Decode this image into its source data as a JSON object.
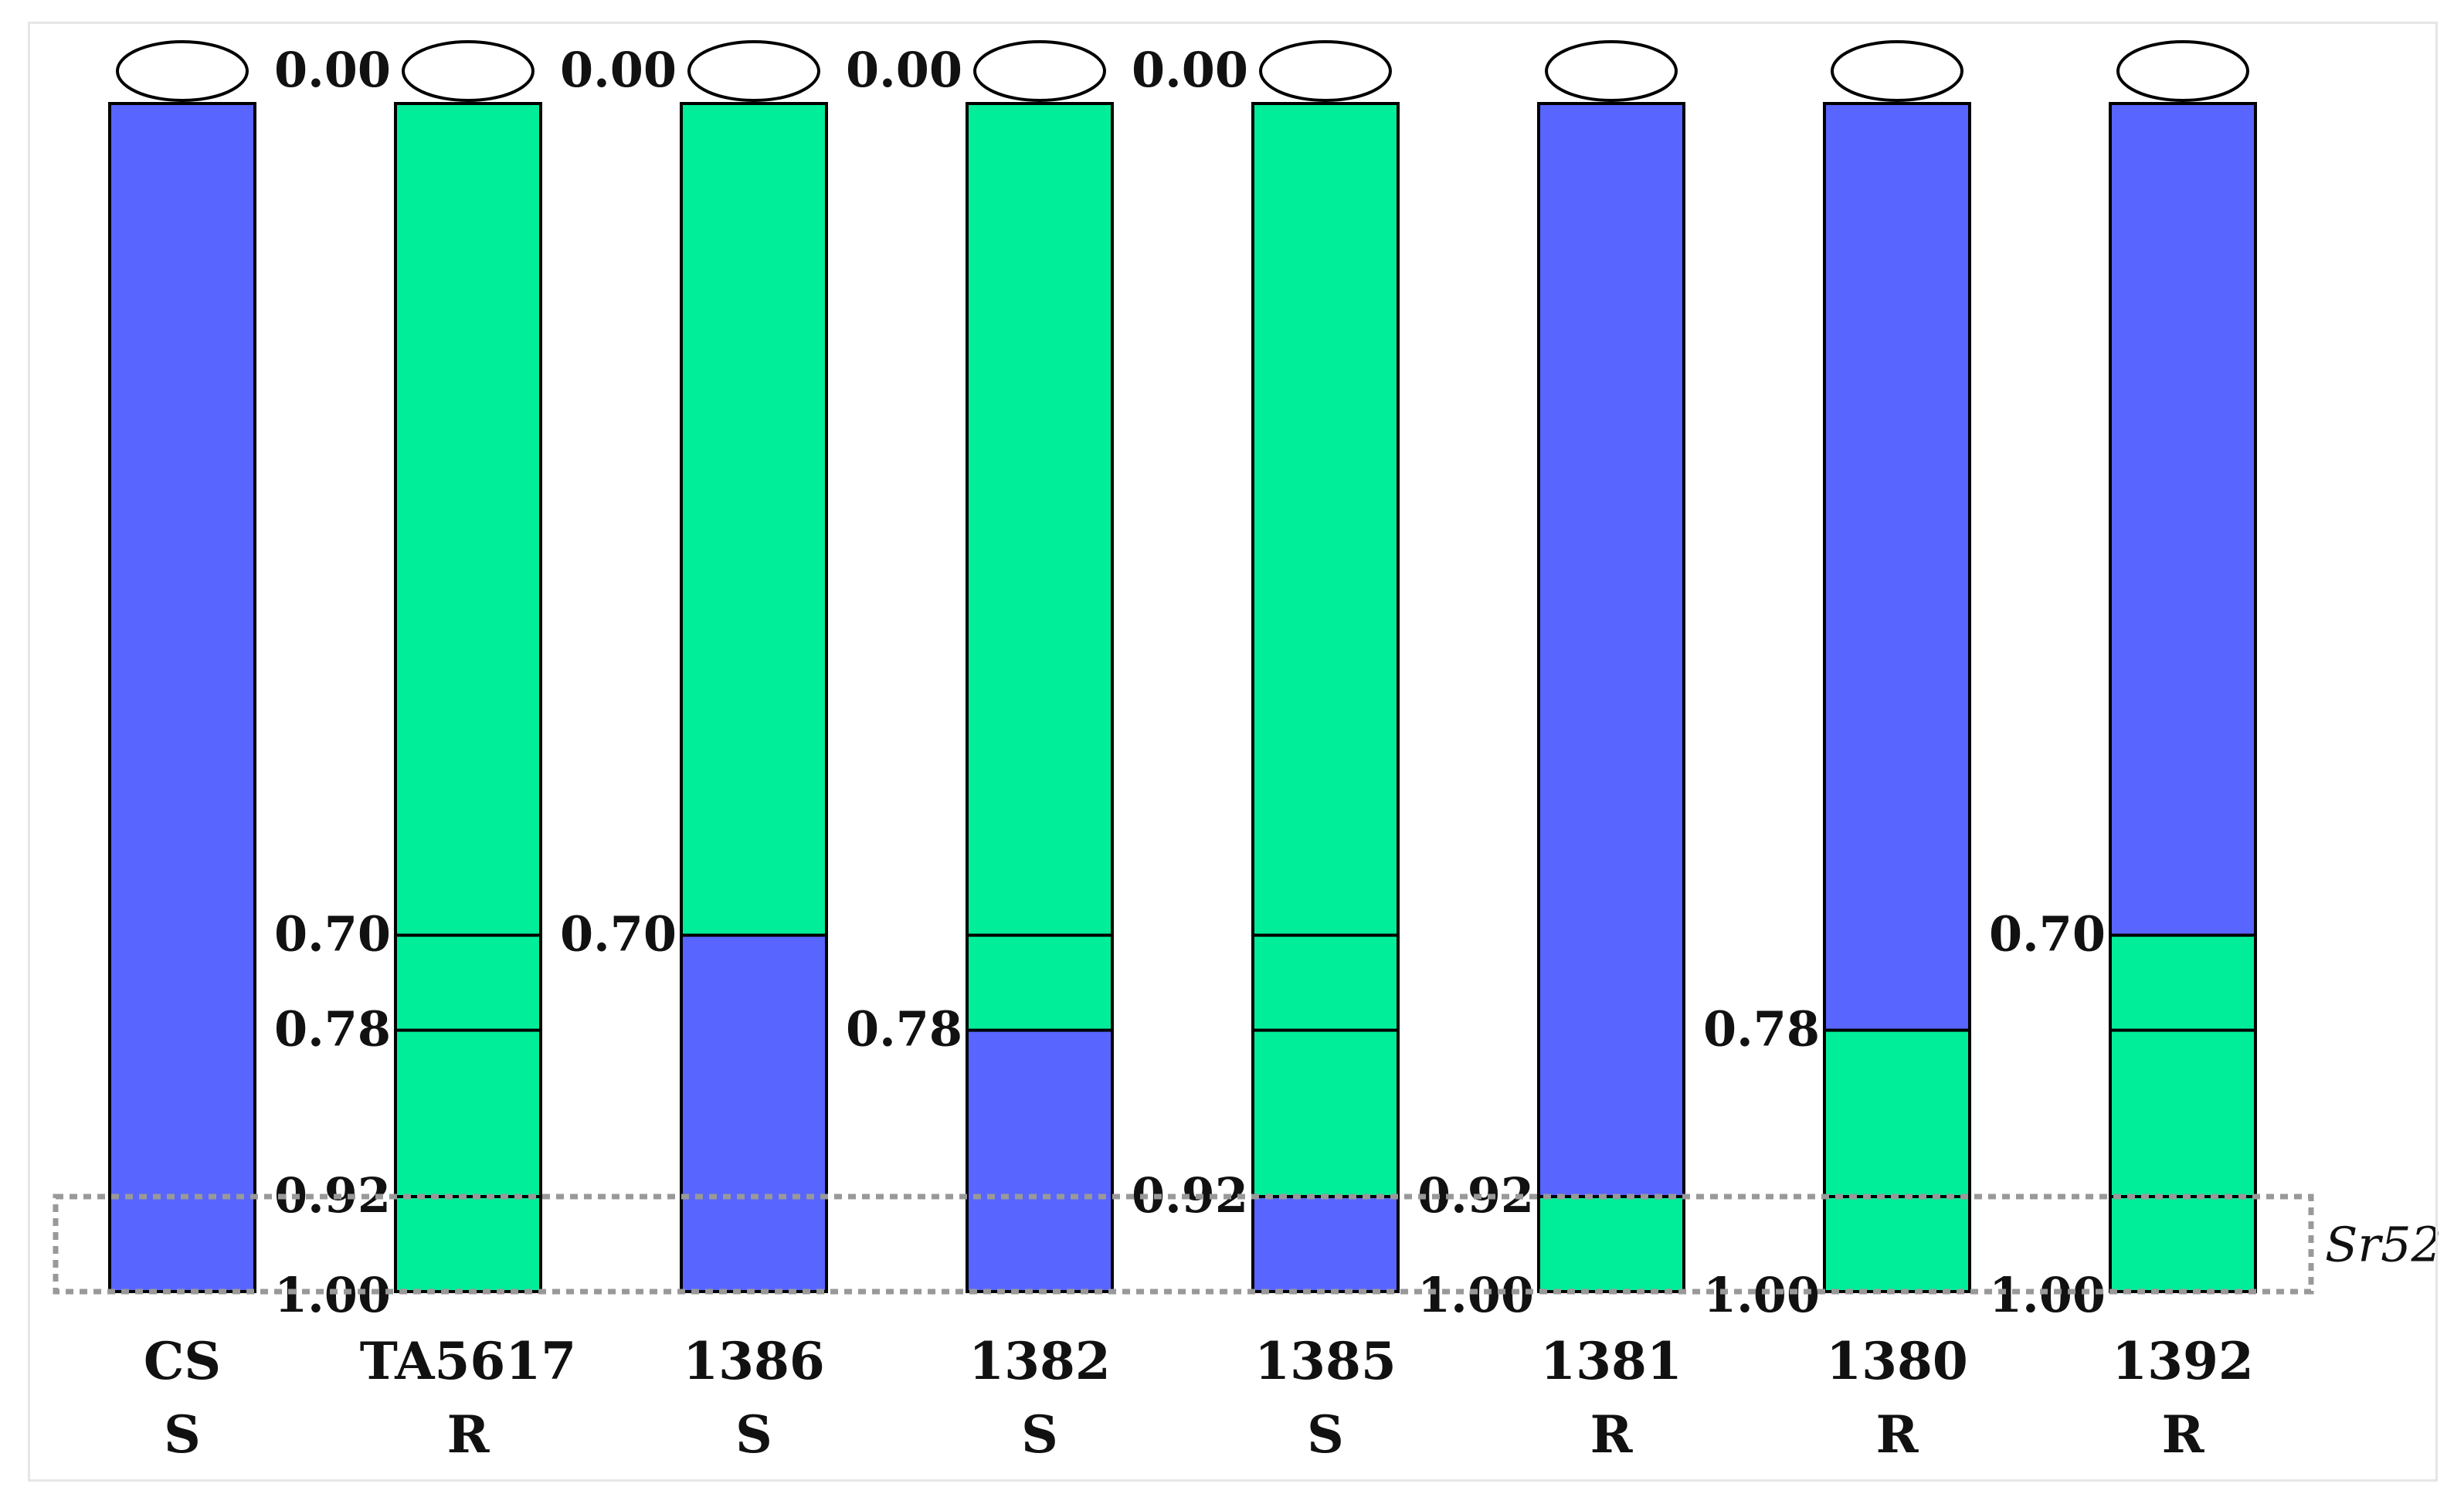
{
  "colors": {
    "wheat": "#5865ff",
    "alien": "#00ee99",
    "outline": "#000000",
    "region_box": "#999999"
  },
  "region": {
    "label": "Sr52",
    "start": 0.92,
    "end": 1.0
  },
  "chromosomes": [
    {
      "name": "CS",
      "phenotype": "S",
      "segments": [
        {
          "from": 0.0,
          "to": 1.0,
          "type": "wheat"
        }
      ],
      "boundaries": [],
      "labels": []
    },
    {
      "name": "TA5617",
      "phenotype": "R",
      "segments": [
        {
          "from": 0.0,
          "to": 1.0,
          "type": "alien"
        }
      ],
      "boundaries": [
        0.7,
        0.78,
        0.92
      ],
      "labels": [
        {
          "text": "0.00",
          "pos": 0.0
        },
        {
          "text": "0.70",
          "pos": 0.7
        },
        {
          "text": "0.78",
          "pos": 0.78
        },
        {
          "text": "0.92",
          "pos": 0.92
        },
        {
          "text": "1.00",
          "pos": 1.0
        }
      ]
    },
    {
      "name": "1386",
      "phenotype": "S",
      "segments": [
        {
          "from": 0.0,
          "to": 0.7,
          "type": "alien"
        },
        {
          "from": 0.7,
          "to": 1.0,
          "type": "wheat"
        }
      ],
      "boundaries": [],
      "labels": [
        {
          "text": "0.00",
          "pos": 0.0
        },
        {
          "text": "0.70",
          "pos": 0.7
        }
      ]
    },
    {
      "name": "1382",
      "phenotype": "S",
      "segments": [
        {
          "from": 0.0,
          "to": 0.78,
          "type": "alien"
        },
        {
          "from": 0.78,
          "to": 1.0,
          "type": "wheat"
        }
      ],
      "boundaries": [
        0.7
      ],
      "labels": [
        {
          "text": "0.00",
          "pos": 0.0
        },
        {
          "text": "0.78",
          "pos": 0.78
        }
      ]
    },
    {
      "name": "1385",
      "phenotype": "S",
      "segments": [
        {
          "from": 0.0,
          "to": 0.92,
          "type": "alien"
        },
        {
          "from": 0.92,
          "to": 1.0,
          "type": "wheat"
        }
      ],
      "boundaries": [
        0.7,
        0.78
      ],
      "labels": [
        {
          "text": "0.00",
          "pos": 0.0
        },
        {
          "text": "0.92",
          "pos": 0.92
        }
      ]
    },
    {
      "name": "1381",
      "phenotype": "R",
      "segments": [
        {
          "from": 0.0,
          "to": 0.92,
          "type": "wheat"
        },
        {
          "from": 0.92,
          "to": 1.0,
          "type": "alien"
        }
      ],
      "boundaries": [],
      "labels": [
        {
          "text": "0.92",
          "pos": 0.92
        },
        {
          "text": "1.00",
          "pos": 1.0
        }
      ]
    },
    {
      "name": "1380",
      "phenotype": "R",
      "segments": [
        {
          "from": 0.0,
          "to": 0.78,
          "type": "wheat"
        },
        {
          "from": 0.78,
          "to": 1.0,
          "type": "alien"
        }
      ],
      "boundaries": [
        0.92
      ],
      "labels": [
        {
          "text": "0.78",
          "pos": 0.78
        },
        {
          "text": "1.00",
          "pos": 1.0
        }
      ]
    },
    {
      "name": "1392",
      "phenotype": "R",
      "segments": [
        {
          "from": 0.0,
          "to": 0.7,
          "type": "wheat"
        },
        {
          "from": 0.7,
          "to": 1.0,
          "type": "alien"
        }
      ],
      "boundaries": [
        0.78,
        0.92
      ],
      "labels": [
        {
          "text": "0.70",
          "pos": 0.7
        },
        {
          "text": "1.00",
          "pos": 1.0
        }
      ]
    }
  ]
}
